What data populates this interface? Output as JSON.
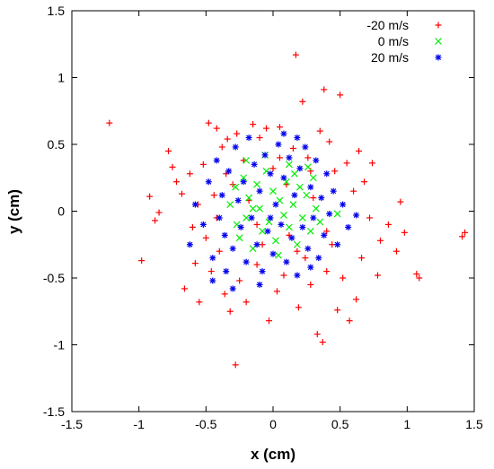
{
  "chart_data": {
    "type": "scatter",
    "title": "",
    "xlabel": "x (cm)",
    "ylabel": "y (cm)",
    "xlim": [
      -1.5,
      1.5
    ],
    "ylim": [
      -1.5,
      1.5
    ],
    "xticks": [
      "-1.5",
      "-1",
      "-0.5",
      "0",
      "0.5",
      "1",
      "1.5"
    ],
    "yticks": [
      "-1.5",
      "-1",
      "-0.5",
      "0",
      "0.5",
      "1",
      "1.5"
    ],
    "grid": false,
    "legend_position": "top-right",
    "series": [
      {
        "name": "-20 m/s",
        "color": "#ff0000",
        "marker": "plus",
        "points": [
          [
            -1.22,
            0.66
          ],
          [
            -0.98,
            -0.37
          ],
          [
            -0.92,
            0.11
          ],
          [
            -0.88,
            -0.07
          ],
          [
            -0.85,
            -0.01
          ],
          [
            -0.78,
            0.45
          ],
          [
            -0.75,
            0.33
          ],
          [
            -0.72,
            0.22
          ],
          [
            -0.68,
            0.13
          ],
          [
            -0.66,
            -0.58
          ],
          [
            -0.62,
            0.28
          ],
          [
            -0.6,
            -0.12
          ],
          [
            -0.58,
            -0.39
          ],
          [
            -0.56,
            0.05
          ],
          [
            -0.55,
            -0.68
          ],
          [
            -0.52,
            0.35
          ],
          [
            -0.5,
            -0.2
          ],
          [
            -0.48,
            0.66
          ],
          [
            -0.46,
            -0.45
          ],
          [
            -0.44,
            0.12
          ],
          [
            -0.42,
            0.62
          ],
          [
            -0.4,
            -0.3
          ],
          [
            -0.38,
            0.48
          ],
          [
            -0.36,
            -0.62
          ],
          [
            -0.34,
            0.54
          ],
          [
            -0.32,
            -0.75
          ],
          [
            -0.3,
            0.2
          ],
          [
            -0.28,
            -1.15
          ],
          [
            -0.27,
            0.58
          ],
          [
            -0.25,
            -0.52
          ],
          [
            -0.22,
            0.38
          ],
          [
            -0.2,
            -0.68
          ],
          [
            -0.18,
            0.08
          ],
          [
            -0.15,
            0.65
          ],
          [
            -0.12,
            -0.4
          ],
          [
            -0.1,
            0.55
          ],
          [
            -0.08,
            -0.25
          ],
          [
            -0.05,
            0.62
          ],
          [
            -0.03,
            -0.82
          ],
          [
            0.0,
            0.32
          ],
          [
            0.03,
            -0.6
          ],
          [
            0.05,
            0.63
          ],
          [
            0.08,
            -0.48
          ],
          [
            0.1,
            0.2
          ],
          [
            0.12,
            -0.18
          ],
          [
            0.15,
            0.47
          ],
          [
            0.17,
            1.17
          ],
          [
            0.19,
            -0.72
          ],
          [
            0.22,
            0.82
          ],
          [
            0.24,
            -0.35
          ],
          [
            0.26,
            0.4
          ],
          [
            0.28,
            -0.55
          ],
          [
            0.3,
            0.1
          ],
          [
            0.33,
            -0.92
          ],
          [
            0.35,
            0.6
          ],
          [
            0.37,
            -0.98
          ],
          [
            0.38,
            0.91
          ],
          [
            0.4,
            -0.45
          ],
          [
            0.42,
            0.52
          ],
          [
            0.44,
            -0.25
          ],
          [
            0.46,
            0.3
          ],
          [
            0.48,
            -0.74
          ],
          [
            0.5,
            0.87
          ],
          [
            0.52,
            -0.5
          ],
          [
            0.55,
            0.36
          ],
          [
            0.57,
            -0.82
          ],
          [
            0.6,
            0.15
          ],
          [
            0.62,
            -0.66
          ],
          [
            0.64,
            0.45
          ],
          [
            0.66,
            -0.35
          ],
          [
            0.68,
            0.22
          ],
          [
            0.72,
            -0.05
          ],
          [
            0.74,
            0.36
          ],
          [
            0.78,
            -0.48
          ],
          [
            0.8,
            -0.22
          ],
          [
            0.86,
            -0.1
          ],
          [
            0.92,
            -0.3
          ],
          [
            0.95,
            0.07
          ],
          [
            0.98,
            -0.16
          ],
          [
            1.07,
            -0.47
          ],
          [
            1.09,
            -0.5
          ],
          [
            1.41,
            -0.19
          ],
          [
            1.43,
            -0.16
          ],
          [
            -0.12,
            -0.1
          ],
          [
            0.05,
            0.4
          ],
          [
            -0.42,
            -0.05
          ],
          [
            0.28,
            0.3
          ],
          [
            -0.35,
            0.28
          ],
          [
            0.4,
            -0.15
          ],
          [
            0.18,
            -0.3
          ]
        ]
      },
      {
        "name": "0 m/s",
        "color": "#00ee00",
        "marker": "cross",
        "points": [
          [
            -0.32,
            0.05
          ],
          [
            -0.28,
            0.18
          ],
          [
            -0.25,
            -0.2
          ],
          [
            -0.22,
            0.25
          ],
          [
            -0.2,
            -0.05
          ],
          [
            -0.18,
            0.1
          ],
          [
            -0.15,
            -0.28
          ],
          [
            -0.12,
            0.2
          ],
          [
            -0.1,
            0.02
          ],
          [
            -0.08,
            -0.15
          ],
          [
            -0.05,
            0.3
          ],
          [
            -0.03,
            -0.08
          ],
          [
            0.0,
            0.15
          ],
          [
            0.02,
            -0.22
          ],
          [
            0.05,
            0.08
          ],
          [
            0.08,
            -0.03
          ],
          [
            0.1,
            0.22
          ],
          [
            0.12,
            -0.12
          ],
          [
            0.15,
            0.05
          ],
          [
            0.18,
            -0.25
          ],
          [
            0.2,
            0.18
          ],
          [
            0.22,
            -0.05
          ],
          [
            0.25,
            0.12
          ],
          [
            0.28,
            -0.15
          ],
          [
            0.3,
            0.25
          ],
          [
            0.32,
            0.02
          ],
          [
            0.35,
            -0.08
          ],
          [
            -0.27,
            -0.1
          ],
          [
            -0.06,
            0.42
          ],
          [
            0.12,
            0.35
          ],
          [
            0.26,
            0.33
          ],
          [
            -0.2,
            0.38
          ],
          [
            0.04,
            -0.33
          ],
          [
            -0.15,
            0.02
          ],
          [
            0.16,
            0.28
          ],
          [
            0.48,
            -0.02
          ]
        ]
      },
      {
        "name": "20 m/s",
        "color": "#0000ee",
        "marker": "star",
        "points": [
          [
            -0.62,
            -0.25
          ],
          [
            -0.58,
            0.05
          ],
          [
            -0.52,
            -0.1
          ],
          [
            -0.48,
            0.22
          ],
          [
            -0.45,
            -0.35
          ],
          [
            -0.42,
            0.38
          ],
          [
            -0.4,
            -0.05
          ],
          [
            -0.38,
            0.12
          ],
          [
            -0.36,
            -0.18
          ],
          [
            -0.35,
            -0.45
          ],
          [
            -0.33,
            0.3
          ],
          [
            -0.3,
            -0.28
          ],
          [
            -0.28,
            0.48
          ],
          [
            -0.26,
            0.08
          ],
          [
            -0.24,
            -0.12
          ],
          [
            -0.22,
            0.22
          ],
          [
            -0.2,
            -0.38
          ],
          [
            -0.18,
            0.55
          ],
          [
            -0.16,
            -0.05
          ],
          [
            -0.14,
            0.35
          ],
          [
            -0.12,
            -0.25
          ],
          [
            -0.1,
            0.15
          ],
          [
            -0.08,
            -0.45
          ],
          [
            -0.06,
            0.42
          ],
          [
            -0.04,
            -0.15
          ],
          [
            -0.02,
            0.28
          ],
          [
            0.0,
            -0.32
          ],
          [
            0.02,
            0.05
          ],
          [
            0.04,
            0.5
          ],
          [
            0.06,
            -0.1
          ],
          [
            0.08,
            0.25
          ],
          [
            0.1,
            -0.38
          ],
          [
            0.12,
            0.4
          ],
          [
            0.14,
            -0.2
          ],
          [
            0.16,
            0.12
          ],
          [
            0.18,
            -0.48
          ],
          [
            0.2,
            0.32
          ],
          [
            0.22,
            -0.12
          ],
          [
            0.24,
            0.48
          ],
          [
            0.26,
            -0.28
          ],
          [
            0.28,
            0.18
          ],
          [
            0.3,
            -0.05
          ],
          [
            0.32,
            0.38
          ],
          [
            0.34,
            -0.35
          ],
          [
            0.36,
            0.1
          ],
          [
            0.38,
            -0.18
          ],
          [
            0.4,
            0.28
          ],
          [
            0.42,
            -0.02
          ],
          [
            0.45,
            0.15
          ],
          [
            0.48,
            -0.25
          ],
          [
            0.52,
            0.05
          ],
          [
            0.56,
            -0.12
          ],
          [
            0.62,
            -0.03
          ],
          [
            -0.45,
            -0.52
          ],
          [
            0.08,
            0.58
          ],
          [
            -0.1,
            -0.55
          ],
          [
            0.18,
            0.55
          ],
          [
            -0.3,
            -0.58
          ],
          [
            0.28,
            -0.42
          ],
          [
            -0.02,
            -0.05
          ]
        ]
      }
    ]
  }
}
